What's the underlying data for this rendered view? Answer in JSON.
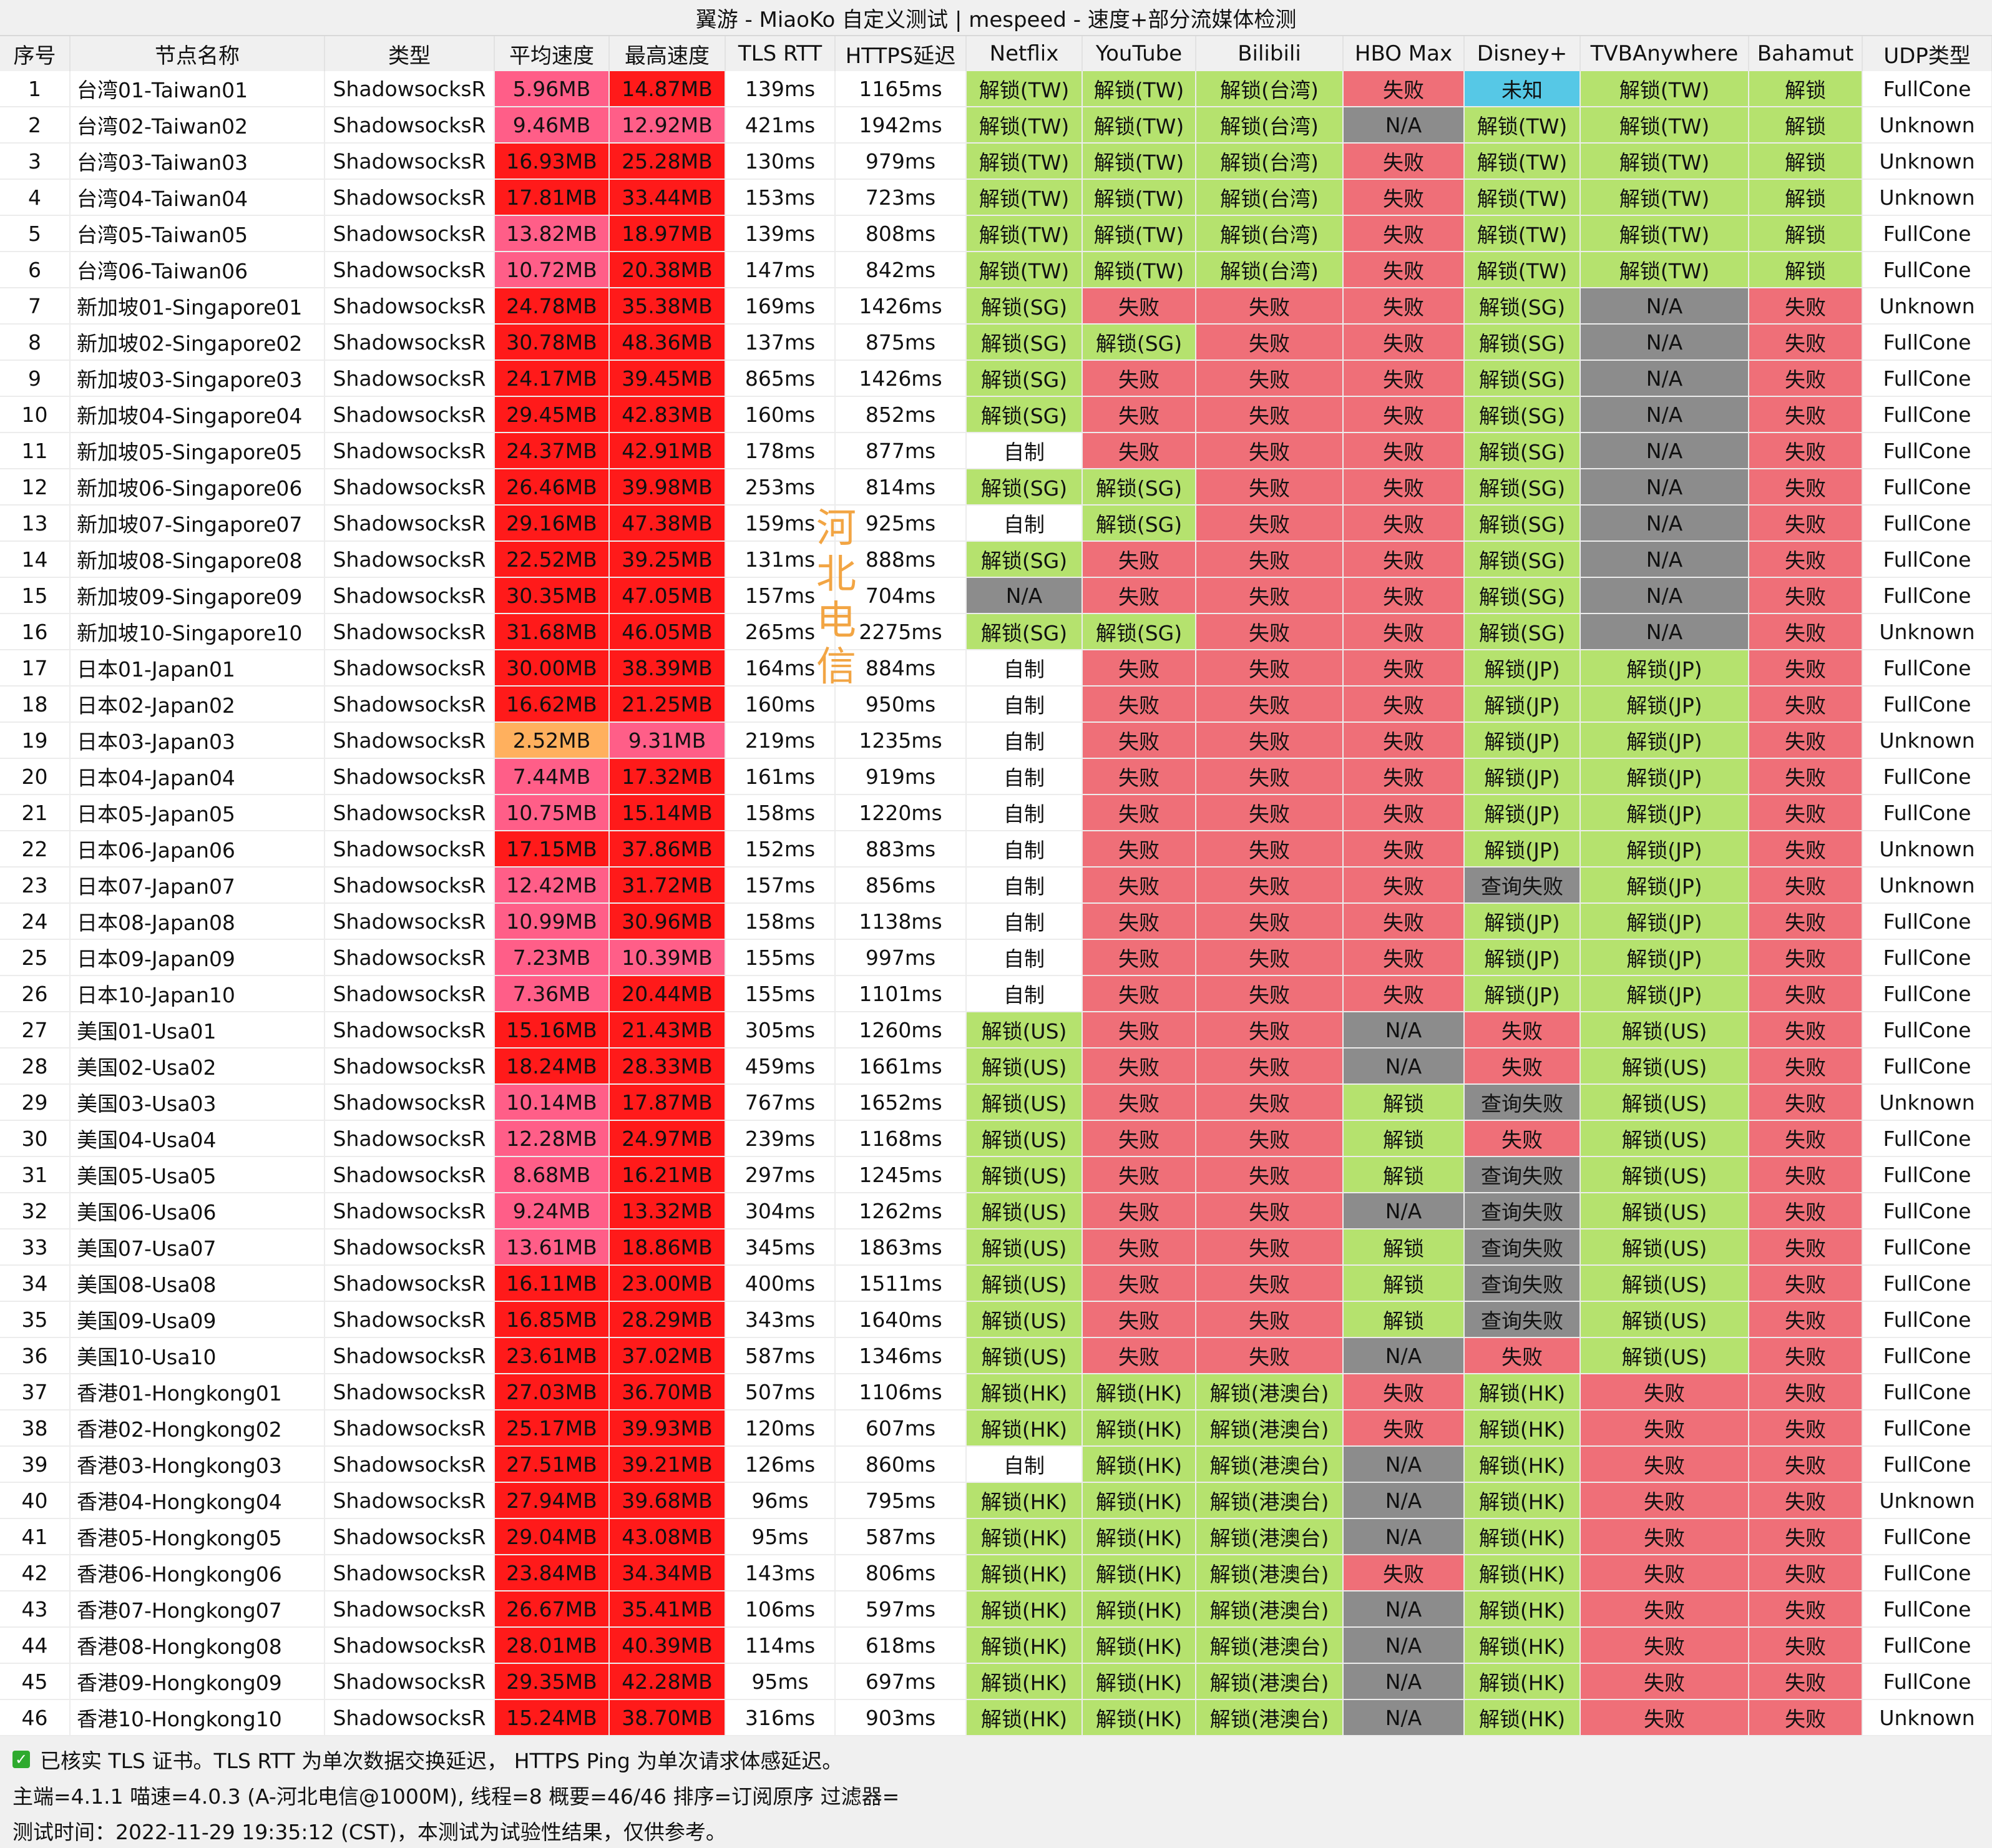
{
  "title": "翼游 - MiaoKo 自定义测试 | mespeed - 速度+部分流媒体检测",
  "headers": [
    "序号",
    "节点名称",
    "类型",
    "平均速度",
    "最高速度",
    "TLS RTT",
    "HTTPS延迟",
    "Netflix",
    "YouTube",
    "Bilibili",
    "HBO Max",
    "Disney+",
    "TVBAnywhere",
    "Bahamut",
    "UDP类型"
  ],
  "colors": {
    "ok": "#b5e26e",
    "fail": "#ef6f78",
    "na": "#8c8c8c",
    "unknown": "#56c8e6",
    "speed_pink": "#ff5e88",
    "speed_red": "#ff1a1a",
    "speed_orange": "#ffb05e"
  },
  "watermark": "河北电信",
  "rows": [
    [
      "1",
      "台湾01-Taiwan01",
      "ShadowsocksR",
      "5.96MB",
      "14.87MB",
      "139ms",
      "1165ms",
      "解锁(TW)",
      "解锁(TW)",
      "解锁(台湾)",
      "失败",
      "未知",
      "解锁(TW)",
      "解锁",
      "FullCone"
    ],
    [
      "2",
      "台湾02-Taiwan02",
      "ShadowsocksR",
      "9.46MB",
      "12.92MB",
      "421ms",
      "1942ms",
      "解锁(TW)",
      "解锁(TW)",
      "解锁(台湾)",
      "N/A",
      "解锁(TW)",
      "解锁(TW)",
      "解锁",
      "Unknown"
    ],
    [
      "3",
      "台湾03-Taiwan03",
      "ShadowsocksR",
      "16.93MB",
      "25.28MB",
      "130ms",
      "979ms",
      "解锁(TW)",
      "解锁(TW)",
      "解锁(台湾)",
      "失败",
      "解锁(TW)",
      "解锁(TW)",
      "解锁",
      "Unknown"
    ],
    [
      "4",
      "台湾04-Taiwan04",
      "ShadowsocksR",
      "17.81MB",
      "33.44MB",
      "153ms",
      "723ms",
      "解锁(TW)",
      "解锁(TW)",
      "解锁(台湾)",
      "失败",
      "解锁(TW)",
      "解锁(TW)",
      "解锁",
      "Unknown"
    ],
    [
      "5",
      "台湾05-Taiwan05",
      "ShadowsocksR",
      "13.82MB",
      "18.97MB",
      "139ms",
      "808ms",
      "解锁(TW)",
      "解锁(TW)",
      "解锁(台湾)",
      "失败",
      "解锁(TW)",
      "解锁(TW)",
      "解锁",
      "FullCone"
    ],
    [
      "6",
      "台湾06-Taiwan06",
      "ShadowsocksR",
      "10.72MB",
      "20.38MB",
      "147ms",
      "842ms",
      "解锁(TW)",
      "解锁(TW)",
      "解锁(台湾)",
      "失败",
      "解锁(TW)",
      "解锁(TW)",
      "解锁",
      "FullCone"
    ],
    [
      "7",
      "新加坡01-Singapore01",
      "ShadowsocksR",
      "24.78MB",
      "35.38MB",
      "169ms",
      "1426ms",
      "解锁(SG)",
      "失败",
      "失败",
      "失败",
      "解锁(SG)",
      "N/A",
      "失败",
      "Unknown"
    ],
    [
      "8",
      "新加坡02-Singapore02",
      "ShadowsocksR",
      "30.78MB",
      "48.36MB",
      "137ms",
      "875ms",
      "解锁(SG)",
      "解锁(SG)",
      "失败",
      "失败",
      "解锁(SG)",
      "N/A",
      "失败",
      "FullCone"
    ],
    [
      "9",
      "新加坡03-Singapore03",
      "ShadowsocksR",
      "24.17MB",
      "39.45MB",
      "865ms",
      "1426ms",
      "解锁(SG)",
      "失败",
      "失败",
      "失败",
      "解锁(SG)",
      "N/A",
      "失败",
      "FullCone"
    ],
    [
      "10",
      "新加坡04-Singapore04",
      "ShadowsocksR",
      "29.45MB",
      "42.83MB",
      "160ms",
      "852ms",
      "解锁(SG)",
      "失败",
      "失败",
      "失败",
      "解锁(SG)",
      "N/A",
      "失败",
      "FullCone"
    ],
    [
      "11",
      "新加坡05-Singapore05",
      "ShadowsocksR",
      "24.37MB",
      "42.91MB",
      "178ms",
      "877ms",
      "自制",
      "失败",
      "失败",
      "失败",
      "解锁(SG)",
      "N/A",
      "失败",
      "FullCone"
    ],
    [
      "12",
      "新加坡06-Singapore06",
      "ShadowsocksR",
      "26.46MB",
      "39.98MB",
      "253ms",
      "814ms",
      "解锁(SG)",
      "解锁(SG)",
      "失败",
      "失败",
      "解锁(SG)",
      "N/A",
      "失败",
      "FullCone"
    ],
    [
      "13",
      "新加坡07-Singapore07",
      "ShadowsocksR",
      "29.16MB",
      "47.38MB",
      "159ms",
      "925ms",
      "自制",
      "解锁(SG)",
      "失败",
      "失败",
      "解锁(SG)",
      "N/A",
      "失败",
      "FullCone"
    ],
    [
      "14",
      "新加坡08-Singapore08",
      "ShadowsocksR",
      "22.52MB",
      "39.25MB",
      "131ms",
      "888ms",
      "解锁(SG)",
      "失败",
      "失败",
      "失败",
      "解锁(SG)",
      "N/A",
      "失败",
      "FullCone"
    ],
    [
      "15",
      "新加坡09-Singapore09",
      "ShadowsocksR",
      "30.35MB",
      "47.05MB",
      "157ms",
      "704ms",
      "N/A",
      "失败",
      "失败",
      "失败",
      "解锁(SG)",
      "N/A",
      "失败",
      "FullCone"
    ],
    [
      "16",
      "新加坡10-Singapore10",
      "ShadowsocksR",
      "31.68MB",
      "46.05MB",
      "265ms",
      "2275ms",
      "解锁(SG)",
      "解锁(SG)",
      "失败",
      "失败",
      "解锁(SG)",
      "N/A",
      "失败",
      "Unknown"
    ],
    [
      "17",
      "日本01-Japan01",
      "ShadowsocksR",
      "30.00MB",
      "38.39MB",
      "164ms",
      "884ms",
      "自制",
      "失败",
      "失败",
      "失败",
      "解锁(JP)",
      "解锁(JP)",
      "失败",
      "FullCone"
    ],
    [
      "18",
      "日本02-Japan02",
      "ShadowsocksR",
      "16.62MB",
      "21.25MB",
      "160ms",
      "950ms",
      "自制",
      "失败",
      "失败",
      "失败",
      "解锁(JP)",
      "解锁(JP)",
      "失败",
      "FullCone"
    ],
    [
      "19",
      "日本03-Japan03",
      "ShadowsocksR",
      "2.52MB",
      "9.31MB",
      "219ms",
      "1235ms",
      "自制",
      "失败",
      "失败",
      "失败",
      "解锁(JP)",
      "解锁(JP)",
      "失败",
      "Unknown"
    ],
    [
      "20",
      "日本04-Japan04",
      "ShadowsocksR",
      "7.44MB",
      "17.32MB",
      "161ms",
      "919ms",
      "自制",
      "失败",
      "失败",
      "失败",
      "解锁(JP)",
      "解锁(JP)",
      "失败",
      "FullCone"
    ],
    [
      "21",
      "日本05-Japan05",
      "ShadowsocksR",
      "10.75MB",
      "15.14MB",
      "158ms",
      "1220ms",
      "自制",
      "失败",
      "失败",
      "失败",
      "解锁(JP)",
      "解锁(JP)",
      "失败",
      "FullCone"
    ],
    [
      "22",
      "日本06-Japan06",
      "ShadowsocksR",
      "17.15MB",
      "37.86MB",
      "152ms",
      "883ms",
      "自制",
      "失败",
      "失败",
      "失败",
      "解锁(JP)",
      "解锁(JP)",
      "失败",
      "Unknown"
    ],
    [
      "23",
      "日本07-Japan07",
      "ShadowsocksR",
      "12.42MB",
      "31.72MB",
      "157ms",
      "856ms",
      "自制",
      "失败",
      "失败",
      "失败",
      "查询失败",
      "解锁(JP)",
      "失败",
      "Unknown"
    ],
    [
      "24",
      "日本08-Japan08",
      "ShadowsocksR",
      "10.99MB",
      "30.96MB",
      "158ms",
      "1138ms",
      "自制",
      "失败",
      "失败",
      "失败",
      "解锁(JP)",
      "解锁(JP)",
      "失败",
      "FullCone"
    ],
    [
      "25",
      "日本09-Japan09",
      "ShadowsocksR",
      "7.23MB",
      "10.39MB",
      "155ms",
      "997ms",
      "自制",
      "失败",
      "失败",
      "失败",
      "解锁(JP)",
      "解锁(JP)",
      "失败",
      "FullCone"
    ],
    [
      "26",
      "日本10-Japan10",
      "ShadowsocksR",
      "7.36MB",
      "20.44MB",
      "155ms",
      "1101ms",
      "自制",
      "失败",
      "失败",
      "失败",
      "解锁(JP)",
      "解锁(JP)",
      "失败",
      "FullCone"
    ],
    [
      "27",
      "美国01-Usa01",
      "ShadowsocksR",
      "15.16MB",
      "21.43MB",
      "305ms",
      "1260ms",
      "解锁(US)",
      "失败",
      "失败",
      "N/A",
      "失败",
      "解锁(US)",
      "失败",
      "FullCone"
    ],
    [
      "28",
      "美国02-Usa02",
      "ShadowsocksR",
      "18.24MB",
      "28.33MB",
      "459ms",
      "1661ms",
      "解锁(US)",
      "失败",
      "失败",
      "N/A",
      "失败",
      "解锁(US)",
      "失败",
      "FullCone"
    ],
    [
      "29",
      "美国03-Usa03",
      "ShadowsocksR",
      "10.14MB",
      "17.87MB",
      "767ms",
      "1652ms",
      "解锁(US)",
      "失败",
      "失败",
      "解锁",
      "查询失败",
      "解锁(US)",
      "失败",
      "Unknown"
    ],
    [
      "30",
      "美国04-Usa04",
      "ShadowsocksR",
      "12.28MB",
      "24.97MB",
      "239ms",
      "1168ms",
      "解锁(US)",
      "失败",
      "失败",
      "解锁",
      "失败",
      "解锁(US)",
      "失败",
      "FullCone"
    ],
    [
      "31",
      "美国05-Usa05",
      "ShadowsocksR",
      "8.68MB",
      "16.21MB",
      "297ms",
      "1245ms",
      "解锁(US)",
      "失败",
      "失败",
      "解锁",
      "查询失败",
      "解锁(US)",
      "失败",
      "FullCone"
    ],
    [
      "32",
      "美国06-Usa06",
      "ShadowsocksR",
      "9.24MB",
      "13.32MB",
      "304ms",
      "1262ms",
      "解锁(US)",
      "失败",
      "失败",
      "N/A",
      "查询失败",
      "解锁(US)",
      "失败",
      "FullCone"
    ],
    [
      "33",
      "美国07-Usa07",
      "ShadowsocksR",
      "13.61MB",
      "18.86MB",
      "345ms",
      "1863ms",
      "解锁(US)",
      "失败",
      "失败",
      "解锁",
      "查询失败",
      "解锁(US)",
      "失败",
      "FullCone"
    ],
    [
      "34",
      "美国08-Usa08",
      "ShadowsocksR",
      "16.11MB",
      "23.00MB",
      "400ms",
      "1511ms",
      "解锁(US)",
      "失败",
      "失败",
      "解锁",
      "查询失败",
      "解锁(US)",
      "失败",
      "FullCone"
    ],
    [
      "35",
      "美国09-Usa09",
      "ShadowsocksR",
      "16.85MB",
      "28.29MB",
      "343ms",
      "1640ms",
      "解锁(US)",
      "失败",
      "失败",
      "解锁",
      "查询失败",
      "解锁(US)",
      "失败",
      "FullCone"
    ],
    [
      "36",
      "美国10-Usa10",
      "ShadowsocksR",
      "23.61MB",
      "37.02MB",
      "587ms",
      "1346ms",
      "解锁(US)",
      "失败",
      "失败",
      "N/A",
      "失败",
      "解锁(US)",
      "失败",
      "FullCone"
    ],
    [
      "37",
      "香港01-Hongkong01",
      "ShadowsocksR",
      "27.03MB",
      "36.70MB",
      "507ms",
      "1106ms",
      "解锁(HK)",
      "解锁(HK)",
      "解锁(港澳台)",
      "失败",
      "解锁(HK)",
      "失败",
      "失败",
      "FullCone"
    ],
    [
      "38",
      "香港02-Hongkong02",
      "ShadowsocksR",
      "25.17MB",
      "39.93MB",
      "120ms",
      "607ms",
      "解锁(HK)",
      "解锁(HK)",
      "解锁(港澳台)",
      "失败",
      "解锁(HK)",
      "失败",
      "失败",
      "FullCone"
    ],
    [
      "39",
      "香港03-Hongkong03",
      "ShadowsocksR",
      "27.51MB",
      "39.21MB",
      "126ms",
      "860ms",
      "自制",
      "解锁(HK)",
      "解锁(港澳台)",
      "N/A",
      "解锁(HK)",
      "失败",
      "失败",
      "FullCone"
    ],
    [
      "40",
      "香港04-Hongkong04",
      "ShadowsocksR",
      "27.94MB",
      "39.68MB",
      "96ms",
      "795ms",
      "解锁(HK)",
      "解锁(HK)",
      "解锁(港澳台)",
      "N/A",
      "解锁(HK)",
      "失败",
      "失败",
      "Unknown"
    ],
    [
      "41",
      "香港05-Hongkong05",
      "ShadowsocksR",
      "29.04MB",
      "43.08MB",
      "95ms",
      "587ms",
      "解锁(HK)",
      "解锁(HK)",
      "解锁(港澳台)",
      "N/A",
      "解锁(HK)",
      "失败",
      "失败",
      "FullCone"
    ],
    [
      "42",
      "香港06-Hongkong06",
      "ShadowsocksR",
      "23.84MB",
      "34.34MB",
      "143ms",
      "806ms",
      "解锁(HK)",
      "解锁(HK)",
      "解锁(港澳台)",
      "失败",
      "解锁(HK)",
      "失败",
      "失败",
      "FullCone"
    ],
    [
      "43",
      "香港07-Hongkong07",
      "ShadowsocksR",
      "26.67MB",
      "35.41MB",
      "106ms",
      "597ms",
      "解锁(HK)",
      "解锁(HK)",
      "解锁(港澳台)",
      "N/A",
      "解锁(HK)",
      "失败",
      "失败",
      "FullCone"
    ],
    [
      "44",
      "香港08-Hongkong08",
      "ShadowsocksR",
      "28.01MB",
      "40.39MB",
      "114ms",
      "618ms",
      "解锁(HK)",
      "解锁(HK)",
      "解锁(港澳台)",
      "N/A",
      "解锁(HK)",
      "失败",
      "失败",
      "FullCone"
    ],
    [
      "45",
      "香港09-Hongkong09",
      "ShadowsocksR",
      "29.35MB",
      "42.28MB",
      "95ms",
      "697ms",
      "解锁(HK)",
      "解锁(HK)",
      "解锁(港澳台)",
      "N/A",
      "解锁(HK)",
      "失败",
      "失败",
      "FullCone"
    ],
    [
      "46",
      "香港10-Hongkong10",
      "ShadowsocksR",
      "15.24MB",
      "38.70MB",
      "316ms",
      "903ms",
      "解锁(HK)",
      "解锁(HK)",
      "解锁(港澳台)",
      "N/A",
      "解锁(HK)",
      "失败",
      "失败",
      "Unknown"
    ]
  ],
  "footer": {
    "line1": "已核实 TLS 证书。TLS RTT 为单次数据交换延迟， HTTPS Ping 为单次请求体感延迟。",
    "line2": "主端=4.1.1 喵速=4.0.3 (A-河北电信@1000M), 线程=8 概要=46/46 排序=订阅原序 过滤器=",
    "line3": "测试时间：2022-11-29 19:35:12 (CST)，本测试为试验性结果，仅供参考。"
  }
}
